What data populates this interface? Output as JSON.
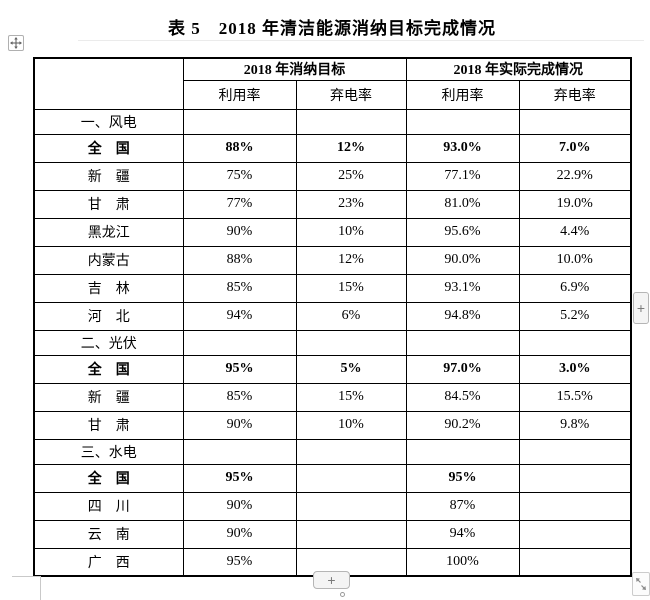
{
  "title": "表 5　2018 年清洁能源消纳目标完成情况",
  "table": {
    "group_headers": [
      "2018 年消纳目标",
      "2018 年实际完成情况"
    ],
    "sub_headers": [
      "利用率",
      "弃电率",
      "利用率",
      "弃电率"
    ],
    "rows": [
      {
        "type": "section",
        "label": "一、风电"
      },
      {
        "type": "data",
        "bold": true,
        "label": "全　国",
        "values": [
          "88%",
          "12%",
          "93.0%",
          "7.0%"
        ]
      },
      {
        "type": "data",
        "bold": false,
        "label": "新　疆",
        "values": [
          "75%",
          "25%",
          "77.1%",
          "22.9%"
        ]
      },
      {
        "type": "data",
        "bold": false,
        "label": "甘　肃",
        "values": [
          "77%",
          "23%",
          "81.0%",
          "19.0%"
        ]
      },
      {
        "type": "data",
        "bold": false,
        "label": "黑龙江",
        "values": [
          "90%",
          "10%",
          "95.6%",
          "4.4%"
        ]
      },
      {
        "type": "data",
        "bold": false,
        "label": "内蒙古",
        "values": [
          "88%",
          "12%",
          "90.0%",
          "10.0%"
        ]
      },
      {
        "type": "data",
        "bold": false,
        "label": "吉　林",
        "values": [
          "85%",
          "15%",
          "93.1%",
          "6.9%"
        ]
      },
      {
        "type": "data",
        "bold": false,
        "label": "河　北",
        "values": [
          "94%",
          "6%",
          "94.8%",
          "5.2%"
        ]
      },
      {
        "type": "section",
        "label": "二、光伏"
      },
      {
        "type": "data",
        "bold": true,
        "label": "全　国",
        "values": [
          "95%",
          "5%",
          "97.0%",
          "3.0%"
        ]
      },
      {
        "type": "data",
        "bold": false,
        "label": "新　疆",
        "values": [
          "85%",
          "15%",
          "84.5%",
          "15.5%"
        ]
      },
      {
        "type": "data",
        "bold": false,
        "label": "甘　肃",
        "values": [
          "90%",
          "10%",
          "90.2%",
          "9.8%"
        ]
      },
      {
        "type": "section",
        "label": "三、水电"
      },
      {
        "type": "data",
        "bold": true,
        "label": "全　国",
        "values": [
          "95%",
          "",
          "95%",
          ""
        ]
      },
      {
        "type": "data",
        "bold": false,
        "label": "四　川",
        "values": [
          "90%",
          "",
          "87%",
          ""
        ]
      },
      {
        "type": "data",
        "bold": false,
        "label": "云　南",
        "values": [
          "90%",
          "",
          "94%",
          ""
        ]
      },
      {
        "type": "data",
        "bold": false,
        "label": "广　西",
        "values": [
          "95%",
          "",
          "100%",
          ""
        ]
      }
    ]
  },
  "controls": {
    "move_handle_icon": "move-cross-icon",
    "right_add_label": "+",
    "bottom_add_label": "+",
    "resize_icon": "diagonal-resize-arrows"
  },
  "colors": {
    "table_border": "#000000",
    "text": "#000000",
    "handle_border": "#b5b5b5",
    "handle_bg": "#f4f4f4",
    "handle_glyph": "#7a7a7a"
  }
}
